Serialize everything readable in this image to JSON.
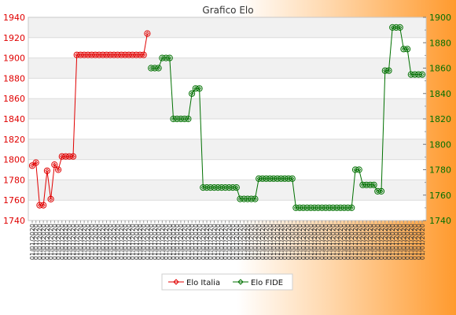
{
  "chart_data": {
    "type": "line",
    "title": "Grafico Elo",
    "x_tick_text": "01/01/2020",
    "y_left": {
      "min": 1740,
      "max": 1940,
      "ticks": [
        1740,
        1760,
        1780,
        1800,
        1820,
        1840,
        1860,
        1880,
        1900,
        1920,
        1940
      ]
    },
    "y_right": {
      "min": 1740,
      "max": 1900,
      "ticks": [
        1740,
        1760,
        1780,
        1800,
        1820,
        1840,
        1860,
        1880,
        1900
      ]
    },
    "grid": true,
    "legend_position": "bottom",
    "series": [
      {
        "name": "Elo Italia",
        "axis": "left",
        "color": "#e00000",
        "values": [
          1794,
          1797,
          1755,
          1755,
          1789,
          1761,
          1795,
          1790,
          1803,
          1803,
          1803,
          1803,
          1903,
          1903,
          1903,
          1903,
          1903,
          1903,
          1903,
          1903,
          1903,
          1903,
          1903,
          1903,
          1903,
          1903,
          1903,
          1903,
          1903,
          1903,
          1903,
          1924
        ]
      },
      {
        "name": "Elo FIDE",
        "axis": "right",
        "color": "#007000",
        "values": [
          1860,
          1860,
          1860,
          1868,
          1868,
          1868,
          1820,
          1820,
          1820,
          1820,
          1820,
          1840,
          1844,
          1844,
          1766,
          1766,
          1766,
          1766,
          1766,
          1766,
          1766,
          1766,
          1766,
          1766,
          1757,
          1757,
          1757,
          1757,
          1757,
          1773,
          1773,
          1773,
          1773,
          1773,
          1773,
          1773,
          1773,
          1773,
          1773,
          1750,
          1750,
          1750,
          1750,
          1750,
          1750,
          1750,
          1750,
          1750,
          1750,
          1750,
          1750,
          1750,
          1750,
          1750,
          1750,
          1780,
          1780,
          1768,
          1768,
          1768,
          1768,
          1763,
          1763,
          1858,
          1858,
          1892,
          1892,
          1892,
          1875,
          1875,
          1855,
          1855,
          1855,
          1855
        ]
      }
    ]
  }
}
